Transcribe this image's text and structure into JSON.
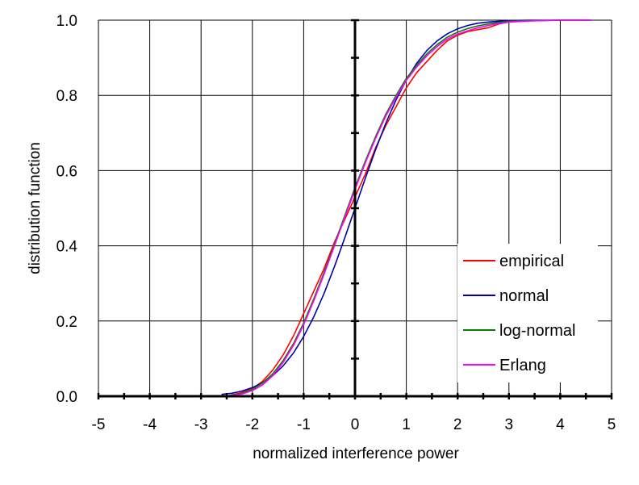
{
  "chart_data": {
    "type": "line",
    "xlabel": "normalized interference power",
    "ylabel": "distribution function",
    "xlim": [
      -5,
      5
    ],
    "ylim": [
      0,
      1
    ],
    "xticks": [
      -5,
      -4,
      -3,
      -2,
      -1,
      0,
      1,
      2,
      3,
      4,
      5
    ],
    "yticks": [
      0.0,
      0.2,
      0.4,
      0.6,
      0.8,
      1.0
    ],
    "ytick_labels": [
      "0.0",
      "0.2",
      "0.4",
      "0.6",
      "0.8",
      "1.0"
    ],
    "grid": true,
    "legend_position": "bottom-right",
    "colors": {
      "empirical": "#ff0000",
      "normal": "#0000b0",
      "log-normal": "#008000",
      "Erlang": "#ff00ff"
    },
    "series": [
      {
        "name": "empirical",
        "color": "#ff0000",
        "x": [
          -2.5,
          -2.2,
          -2.0,
          -1.8,
          -1.6,
          -1.4,
          -1.2,
          -1.0,
          -0.8,
          -0.6,
          -0.4,
          -0.2,
          0.0,
          0.2,
          0.4,
          0.6,
          0.8,
          1.0,
          1.2,
          1.4,
          1.6,
          1.8,
          2.0,
          2.2,
          2.4,
          2.6,
          2.8,
          3.0,
          3.4,
          4.0,
          4.6
        ],
        "y": [
          0.0,
          0.01,
          0.02,
          0.04,
          0.07,
          0.11,
          0.16,
          0.22,
          0.28,
          0.34,
          0.41,
          0.47,
          0.53,
          0.59,
          0.66,
          0.72,
          0.77,
          0.82,
          0.86,
          0.89,
          0.92,
          0.945,
          0.96,
          0.97,
          0.975,
          0.98,
          0.99,
          0.995,
          0.998,
          1.0,
          1.0
        ]
      },
      {
        "name": "normal",
        "color": "#0000b0",
        "x": [
          -2.6,
          -2.4,
          -2.2,
          -2.0,
          -1.8,
          -1.6,
          -1.4,
          -1.2,
          -1.0,
          -0.8,
          -0.6,
          -0.4,
          -0.2,
          0.0,
          0.2,
          0.4,
          0.6,
          0.8,
          1.0,
          1.2,
          1.4,
          1.6,
          1.8,
          2.0,
          2.2,
          2.4,
          2.6,
          2.8,
          3.0,
          3.4,
          4.0,
          4.6
        ],
        "y": [
          0.005,
          0.008,
          0.014,
          0.023,
          0.036,
          0.055,
          0.081,
          0.115,
          0.159,
          0.212,
          0.274,
          0.345,
          0.421,
          0.5,
          0.579,
          0.655,
          0.726,
          0.788,
          0.841,
          0.885,
          0.919,
          0.945,
          0.964,
          0.977,
          0.986,
          0.992,
          0.995,
          0.997,
          0.999,
          1.0,
          1.0,
          1.0
        ]
      },
      {
        "name": "log-normal",
        "color": "#008000",
        "x": [
          -2.5,
          -2.2,
          -2.0,
          -1.8,
          -1.6,
          -1.4,
          -1.2,
          -1.0,
          -0.8,
          -0.6,
          -0.4,
          -0.2,
          0.0,
          0.2,
          0.4,
          0.6,
          0.8,
          1.0,
          1.2,
          1.4,
          1.6,
          1.8,
          2.0,
          2.2,
          2.4,
          2.6,
          2.8,
          3.0,
          3.4,
          4.0,
          4.6
        ],
        "y": [
          0.0,
          0.008,
          0.018,
          0.035,
          0.06,
          0.095,
          0.14,
          0.195,
          0.26,
          0.33,
          0.405,
          0.48,
          0.555,
          0.625,
          0.69,
          0.75,
          0.8,
          0.845,
          0.88,
          0.91,
          0.935,
          0.955,
          0.968,
          0.978,
          0.985,
          0.99,
          0.994,
          0.997,
          0.999,
          1.0,
          1.0
        ]
      },
      {
        "name": "Erlang",
        "color": "#ff00ff",
        "x": [
          -2.5,
          -2.2,
          -2.0,
          -1.8,
          -1.6,
          -1.4,
          -1.2,
          -1.0,
          -0.8,
          -0.6,
          -0.4,
          -0.2,
          0.0,
          0.2,
          0.4,
          0.6,
          0.8,
          1.0,
          1.2,
          1.4,
          1.6,
          1.8,
          2.0,
          2.2,
          2.4,
          2.6,
          2.8,
          3.0,
          3.4,
          4.0,
          4.6
        ],
        "y": [
          0.0,
          0.006,
          0.015,
          0.03,
          0.055,
          0.09,
          0.135,
          0.19,
          0.255,
          0.325,
          0.4,
          0.475,
          0.55,
          0.62,
          0.685,
          0.745,
          0.795,
          0.84,
          0.875,
          0.905,
          0.93,
          0.95,
          0.963,
          0.972,
          0.98,
          0.986,
          0.991,
          0.995,
          0.998,
          1.0,
          1.0
        ]
      }
    ]
  }
}
